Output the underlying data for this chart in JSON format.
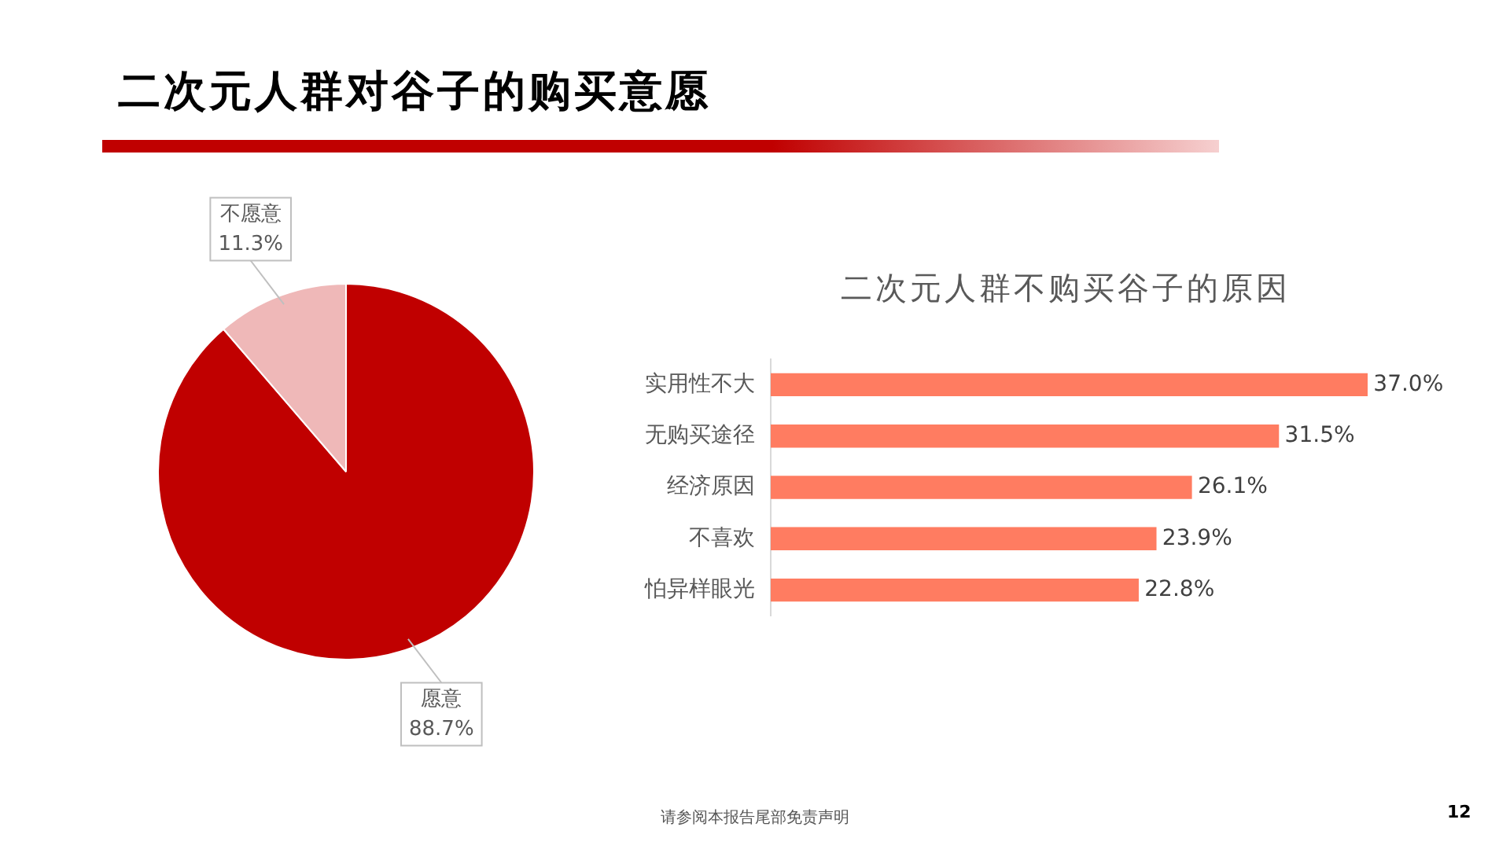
{
  "chart_data": [
    {
      "type": "pie",
      "title": "二次元人群对谷子的购买意愿",
      "categories": [
        "愿意",
        "不愿意"
      ],
      "values": [
        88.7,
        11.3
      ],
      "colors": [
        "#c00000",
        "#efb8b8"
      ],
      "value_labels": [
        "88.7%",
        "11.3%"
      ],
      "legend": false,
      "annotations": [
        "请参阅本报告尾部免责声明",
        "12"
      ]
    },
    {
      "type": "bar",
      "orientation": "horizontal",
      "title": "二次元人群不购买谷子的原因",
      "categories": [
        "实用性不大",
        "无购买途径",
        "经济原因",
        "不喜欢",
        "怕异样眼光"
      ],
      "values": [
        37.0,
        31.5,
        26.1,
        23.9,
        22.8
      ],
      "color": "#ff7c61",
      "value_labels": [
        "37.0%",
        "31.5%",
        "26.1%",
        "23.9%",
        "22.8%"
      ],
      "legend": false
    }
  ]
}
